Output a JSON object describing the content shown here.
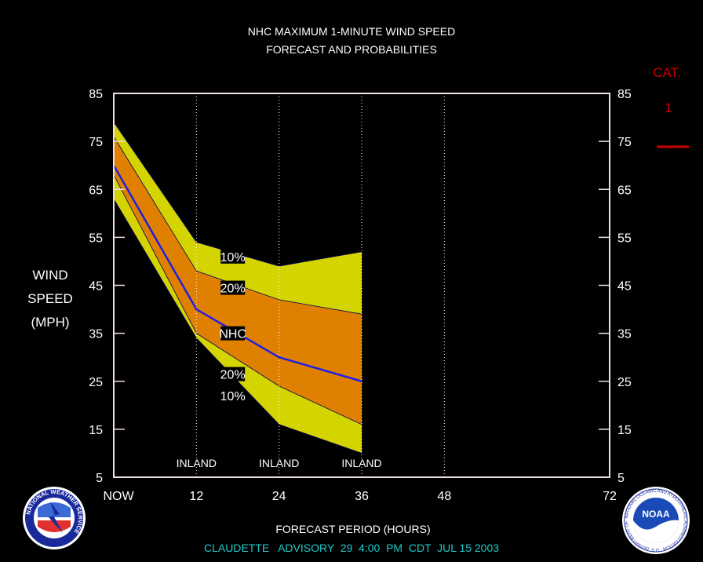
{
  "chart_data": {
    "type": "area",
    "title": "NHC MAXIMUM 1-MINUTE WIND SPEED",
    "subtitle": "FORECAST AND PROBABILITIES",
    "ylabel": [
      "WIND",
      "SPEED",
      "(MPH)"
    ],
    "xlabel": "FORECAST PERIOD (HOURS)",
    "ylim": [
      5,
      85
    ],
    "xlim": [
      0,
      72
    ],
    "yticks": [
      5,
      15,
      25,
      35,
      45,
      55,
      65,
      75,
      85
    ],
    "xticks": [
      {
        "x": 0,
        "label": "NOW"
      },
      {
        "x": 12,
        "label": "12"
      },
      {
        "x": 24,
        "label": "24"
      },
      {
        "x": 36,
        "label": "36"
      },
      {
        "x": 48,
        "label": "48"
      },
      {
        "x": 72,
        "label": "72"
      }
    ],
    "grid_x": [
      12,
      24,
      36,
      48
    ],
    "inland_labels": [
      {
        "x": 12,
        "label": "INLAND"
      },
      {
        "x": 24,
        "label": "INLAND"
      },
      {
        "x": 36,
        "label": "INLAND"
      }
    ],
    "x": [
      0,
      12,
      24,
      36
    ],
    "bands": [
      {
        "label": "10%",
        "color": "#d4d400",
        "upper": [
          79,
          54,
          49,
          52
        ],
        "lower": [
          63,
          34,
          16,
          10
        ]
      },
      {
        "label": "20%",
        "color": "#e08000",
        "upper": [
          76,
          48,
          42,
          39
        ],
        "lower": [
          68,
          35,
          24,
          16
        ]
      }
    ],
    "series": [
      {
        "name": "NHC",
        "color": "#2020e0",
        "values": [
          70,
          40,
          30,
          25
        ]
      }
    ],
    "band_labels": [
      {
        "text": "10%",
        "x": 15,
        "y": 51
      },
      {
        "text": "20%",
        "x": 15,
        "y": 44.5
      },
      {
        "text": "NHC",
        "x": 15,
        "y": 35
      },
      {
        "text": "20%",
        "x": 15,
        "y": 26.5
      },
      {
        "text": "10%",
        "x": 15,
        "y": 22
      }
    ],
    "category": {
      "title": "CAT.",
      "value": "1",
      "color": "#cc0000",
      "wind_threshold": 74
    }
  },
  "footer": {
    "advisory_line": "CLAUDETTE   ADVISORY  29  4:00  PM  CDT  JUL 15 2003",
    "advisory_color": "#20c8c8"
  },
  "logos": {
    "left_text": "NATIONAL WEATHER SERVICE",
    "right_center": "NOAA",
    "right_text": "NATIONAL OCEANIC AND ATMOSPHERIC ADMINISTRATION · U.S. DEPARTMENT OF COMMERCE"
  }
}
